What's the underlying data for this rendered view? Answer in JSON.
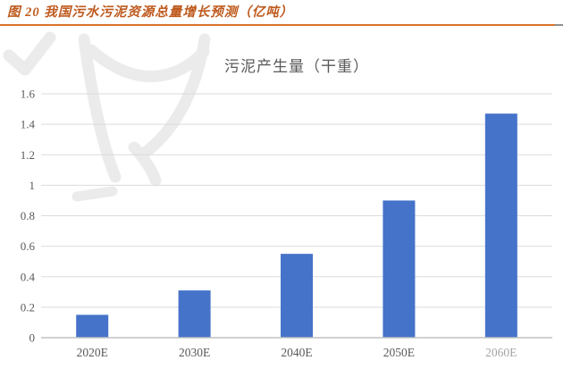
{
  "header": {
    "caption": "图 20 我国污水污泥资源总量增长预测（亿吨）"
  },
  "chart_data": {
    "type": "bar",
    "title": "污泥产生量（干重）",
    "categories": [
      "2020E",
      "2030E",
      "2040E",
      "2050E",
      "2060E"
    ],
    "values": [
      0.15,
      0.31,
      0.55,
      0.9,
      1.47
    ],
    "xlabel": "",
    "ylabel": "",
    "ylim": [
      0,
      1.6
    ],
    "ytick_step": 0.2,
    "ytick_labels": [
      "0",
      "0.2",
      "0.4",
      "0.6",
      "0.8",
      "1",
      "1.2",
      "1.4",
      "1.6"
    ],
    "grid": true,
    "legend": "none",
    "bar_color": "#4573C9"
  },
  "theme": {
    "caption_color": "#BE5A1E",
    "accent_rule": "#D9742B",
    "title_color": "#595959",
    "axis_text_color": "#595959",
    "gridline_color": "#DBDBDB",
    "baseline_color": "#C2C2C2",
    "watermark_color": "#EBEBEB"
  }
}
